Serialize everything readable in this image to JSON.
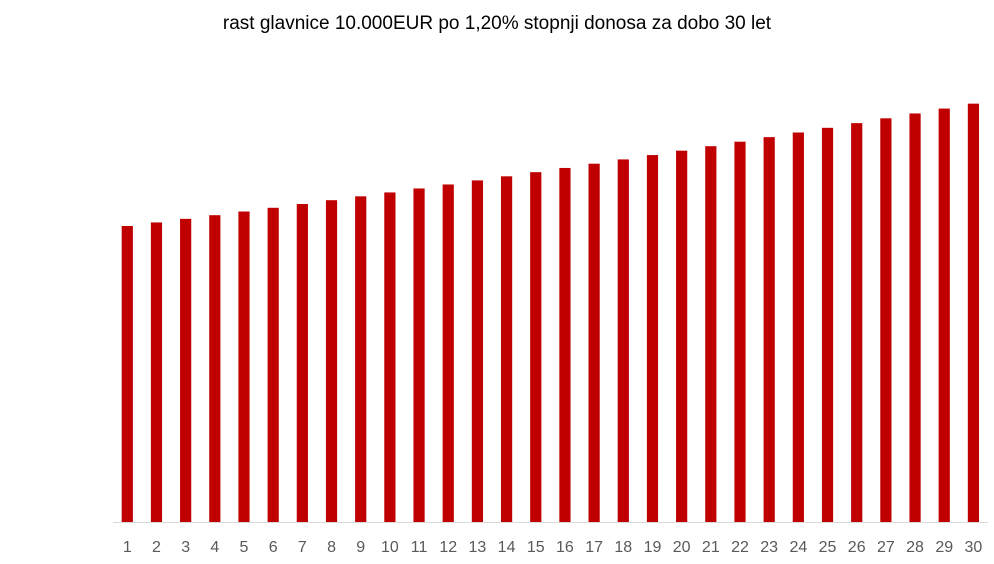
{
  "chart_data": {
    "type": "bar",
    "title": "rast glavnice 10.000EUR po 1,20% stopnji donosa za dobo 30 let",
    "categories": [
      "1",
      "2",
      "3",
      "4",
      "5",
      "6",
      "7",
      "8",
      "9",
      "10",
      "11",
      "12",
      "13",
      "14",
      "15",
      "16",
      "17",
      "18",
      "19",
      "20",
      "21",
      "22",
      "23",
      "24",
      "25",
      "26",
      "27",
      "28",
      "29",
      "30"
    ],
    "values": [
      10120,
      10241,
      10364,
      10489,
      10615,
      10742,
      10871,
      11002,
      11134,
      11267,
      11403,
      11539,
      11678,
      11818,
      11960,
      12104,
      12249,
      12396,
      12545,
      12695,
      12848,
      13002,
      13158,
      13316,
      13476,
      13637,
      13801,
      13967,
      14134,
      14303
    ],
    "color": "#c00000",
    "ylim": [
      0,
      16000
    ]
  }
}
